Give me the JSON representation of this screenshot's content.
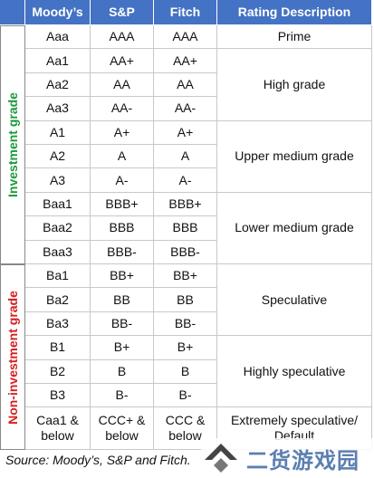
{
  "table": {
    "header": [
      "Moody’s",
      "S&P",
      "Fitch",
      "Rating Description"
    ],
    "sections": [
      {
        "label": "Investment grade",
        "groups": [
          {
            "description": "Prime",
            "rows": [
              [
                "Aaa",
                "AAA",
                "AAA"
              ]
            ]
          },
          {
            "description": "High grade",
            "rows": [
              [
                "Aa1",
                "AA+",
                "AA+"
              ],
              [
                "Aa2",
                "AA",
                "AA"
              ],
              [
                "Aa3",
                "AA-",
                "AA-"
              ]
            ]
          },
          {
            "description": "Upper medium grade",
            "rows": [
              [
                "A1",
                "A+",
                "A+"
              ],
              [
                "A2",
                "A",
                "A"
              ],
              [
                "A3",
                "A-",
                "A-"
              ]
            ]
          },
          {
            "description": "Lower medium grade",
            "rows": [
              [
                "Baa1",
                "BBB+",
                "BBB+"
              ],
              [
                "Baa2",
                "BBB",
                "BBB"
              ],
              [
                "Baa3",
                "BBB-",
                "BBB-"
              ]
            ]
          }
        ]
      },
      {
        "label": "Non-investment grade",
        "groups": [
          {
            "description": "Speculative",
            "rows": [
              [
                "Ba1",
                "BB+",
                "BB+"
              ],
              [
                "Ba2",
                "BB",
                "BB"
              ],
              [
                "Ba3",
                "BB-",
                "BB-"
              ]
            ]
          },
          {
            "description": "Highly speculative",
            "rows": [
              [
                "B1",
                "B+",
                "B+"
              ],
              [
                "B2",
                "B",
                "B"
              ],
              [
                "B3",
                "B-",
                "B-"
              ]
            ]
          },
          {
            "description": "Extremely speculative/ Default",
            "rows": [
              [
                "Caa1 & below",
                "CCC+ & below",
                "CCC & below"
              ]
            ]
          }
        ]
      }
    ]
  },
  "source": "Source: Moody’s, S&P and Fitch.",
  "watermark": "二货游戏园"
}
